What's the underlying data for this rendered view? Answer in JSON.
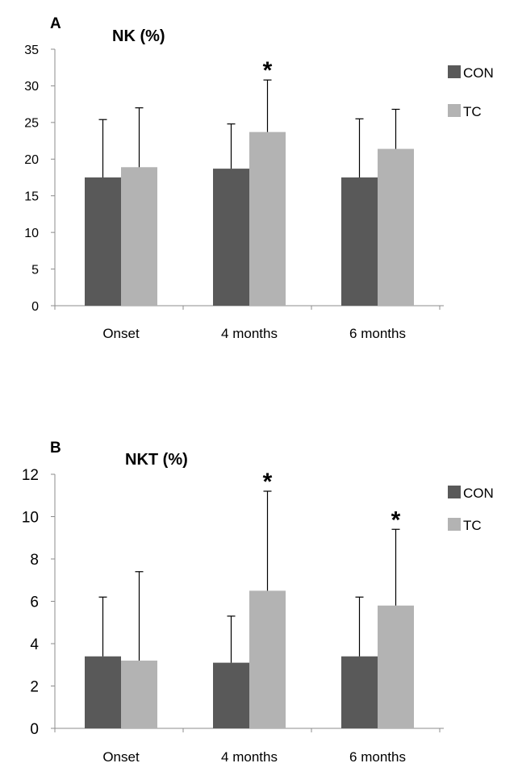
{
  "chart_data": [
    {
      "type": "bar",
      "panel": "A",
      "title": "NK (%)",
      "categories": [
        "Onset",
        "4 months",
        "6 months"
      ],
      "series": [
        {
          "name": "CON",
          "color": "#595959",
          "values": [
            17.5,
            18.7,
            17.5
          ],
          "error": [
            7.9,
            6.1,
            8.0
          ]
        },
        {
          "name": "TC",
          "color": "#b3b3b3",
          "values": [
            18.9,
            23.7,
            21.4
          ],
          "error": [
            8.1,
            7.1,
            5.4
          ]
        }
      ],
      "significant": [
        [],
        [
          "TC"
        ],
        []
      ],
      "significance_marker": "*",
      "ylim": [
        0,
        35
      ],
      "yticks": [
        "0",
        "5",
        "10",
        "15",
        "20",
        "25",
        "30",
        "35"
      ],
      "legend_position": "right",
      "grid": false
    },
    {
      "type": "bar",
      "panel": "B",
      "title": "NKT (%)",
      "categories": [
        "Onset",
        "4 months",
        "6 months"
      ],
      "series": [
        {
          "name": "CON",
          "color": "#595959",
          "values": [
            3.4,
            3.1,
            3.4
          ],
          "error": [
            2.8,
            2.2,
            2.8
          ]
        },
        {
          "name": "TC",
          "color": "#b3b3b3",
          "values": [
            3.2,
            6.5,
            5.8
          ],
          "error": [
            4.2,
            4.7,
            3.6
          ]
        }
      ],
      "significant": [
        [],
        [
          "TC"
        ],
        [
          "TC"
        ]
      ],
      "significance_marker": "*",
      "ylim": [
        0,
        12
      ],
      "yticks": [
        "0",
        "2",
        "4",
        "6",
        "8",
        "10",
        "12"
      ],
      "legend_position": "right",
      "grid": false
    }
  ]
}
